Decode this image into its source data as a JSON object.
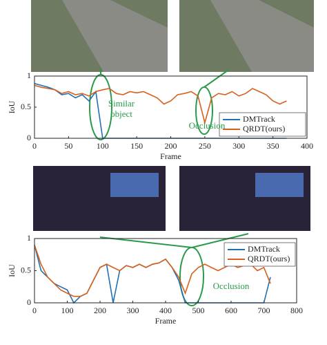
{
  "chart_data": [
    {
      "type": "line",
      "xlabel": "Frame",
      "ylabel": "IoU",
      "xlim": [
        0,
        400
      ],
      "xticks": [
        0,
        50,
        100,
        150,
        200,
        250,
        300,
        350,
        400
      ],
      "ylim": [
        0,
        1
      ],
      "yticks": [
        0,
        0.5,
        1
      ],
      "legend": "lower right",
      "annotations": [
        [
          "Similar",
          "object"
        ],
        [
          "Occlusion"
        ]
      ],
      "x": [
        0,
        10,
        20,
        30,
        40,
        50,
        60,
        70,
        80,
        90,
        100,
        110,
        120,
        130,
        140,
        150,
        160,
        170,
        180,
        190,
        200,
        210,
        220,
        230,
        240,
        250,
        260,
        270,
        280,
        290,
        300,
        310,
        320,
        330,
        340,
        350,
        360,
        370
      ],
      "series": [
        {
          "name": "DMTrack",
          "color": "#1f6fb5",
          "values": [
            0.88,
            0.85,
            0.82,
            0.78,
            0.7,
            0.72,
            0.65,
            0.7,
            0.6,
            0.75,
            0,
            0,
            0,
            0,
            0,
            0,
            0,
            0,
            0,
            0,
            0,
            0,
            0,
            0,
            0,
            0,
            0,
            0,
            0,
            0,
            0,
            0,
            0,
            0,
            0,
            0,
            0,
            0
          ]
        },
        {
          "name": "QRDT(ours)",
          "color": "#d95f1a",
          "values": [
            0.85,
            0.82,
            0.8,
            0.78,
            0.72,
            0.75,
            0.7,
            0.72,
            0.68,
            0.75,
            0.78,
            0.8,
            0.72,
            0.7,
            0.75,
            0.73,
            0.75,
            0.7,
            0.65,
            0.55,
            0.6,
            0.7,
            0.72,
            0.75,
            0.68,
            0.25,
            0.65,
            0.72,
            0.7,
            0.75,
            0.68,
            0.72,
            0.8,
            0.75,
            0.7,
            0.6,
            0.55,
            0.6
          ]
        }
      ]
    },
    {
      "type": "line",
      "xlabel": "Frame",
      "ylabel": "IoU",
      "xlim": [
        0,
        800
      ],
      "xticks": [
        0,
        100,
        200,
        300,
        400,
        500,
        600,
        700,
        800
      ],
      "ylim": [
        0,
        1
      ],
      "yticks": [
        0,
        0.5,
        1
      ],
      "legend": "upper right",
      "annotations": [
        [
          "Occlusion"
        ]
      ],
      "x": [
        0,
        20,
        40,
        60,
        80,
        100,
        120,
        140,
        160,
        180,
        200,
        220,
        240,
        260,
        280,
        300,
        320,
        340,
        360,
        380,
        400,
        420,
        440,
        460,
        480,
        500,
        520,
        540,
        560,
        580,
        600,
        620,
        640,
        660,
        680,
        700,
        720
      ],
      "series": [
        {
          "name": "DMTrack",
          "color": "#1f6fb5",
          "values": [
            0.9,
            0.5,
            0.4,
            0.3,
            0.25,
            0.2,
            0,
            0.1,
            0.15,
            0.35,
            0.55,
            0.6,
            0,
            0.5,
            0.58,
            0.55,
            0.6,
            0.55,
            0.6,
            0.62,
            0.68,
            0.55,
            0.35,
            0,
            0,
            0,
            0,
            0,
            0,
            0,
            0,
            0,
            0,
            0,
            0,
            0,
            0.4
          ]
        },
        {
          "name": "QRDT(ours)",
          "color": "#d95f1a",
          "values": [
            0.9,
            0.6,
            0.4,
            0.3,
            0.2,
            0.15,
            0.1,
            0.1,
            0.15,
            0.35,
            0.55,
            0.6,
            0.55,
            0.5,
            0.58,
            0.55,
            0.6,
            0.55,
            0.6,
            0.62,
            0.68,
            0.55,
            0.4,
            0.15,
            0.45,
            0.55,
            0.6,
            0.55,
            0.5,
            0.55,
            0.6,
            0.55,
            0.58,
            0.6,
            0.5,
            0.55,
            0.3
          ]
        }
      ]
    }
  ]
}
